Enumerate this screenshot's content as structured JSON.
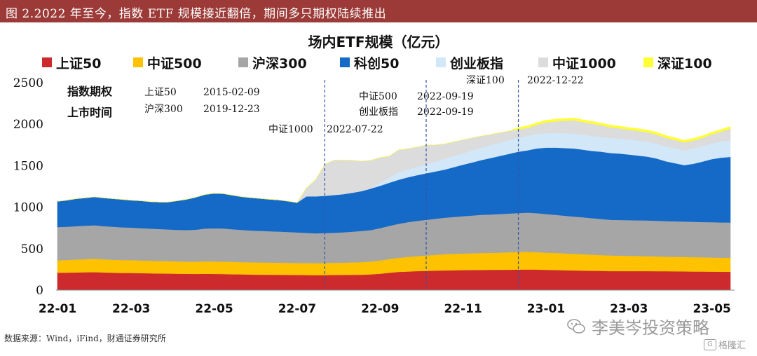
{
  "header": {
    "title": "图 2.2022 年至今，指数 ETF 规模接近翻倍，期间多只期权陆续推出"
  },
  "footer": {
    "source": "数据来源：Wind，iFind，财通证券研究所"
  },
  "watermark": {
    "text": "李美岑投资策略",
    "icon": "wechat-icon",
    "brand": "格隆汇",
    "brand_icon": "g-logo-icon"
  },
  "colors": {
    "sz50": "#cc2a2c",
    "zz500": "#fec200",
    "hs300": "#a6a6a6",
    "kc50": "#1569c7",
    "cybz": "#d2e7f8",
    "zz1000": "#dcdcdc",
    "sz100": "#ffff33",
    "header_bg": "#9b3a37",
    "vline": "#3355aa"
  },
  "chart_data": {
    "type": "area",
    "stacked": true,
    "title": "场内ETF规模（亿元）",
    "xlabel": "",
    "ylabel": "",
    "ylim": [
      0,
      2500
    ],
    "yticks": [
      0,
      500,
      1000,
      1500,
      2000,
      2500
    ],
    "xtick_labels": [
      {
        "label": "22-01",
        "index": 0
      },
      {
        "label": "22-03",
        "index": 8
      },
      {
        "label": "22-05",
        "index": 17
      },
      {
        "label": "22-07",
        "index": 26
      },
      {
        "label": "22-09",
        "index": 35
      },
      {
        "label": "22-11",
        "index": 44
      },
      {
        "label": "23-01",
        "index": 53
      },
      {
        "label": "23-03",
        "index": 62
      },
      {
        "label": "23-05",
        "index": 71
      }
    ],
    "grid": false,
    "legend_position": "top",
    "series": [
      {
        "name": "上证50",
        "color_key": "sz50",
        "values": [
          210,
          212,
          214,
          216,
          218,
          214,
          210,
          208,
          208,
          205,
          203,
          201,
          200,
          198,
          197,
          196,
          198,
          196,
          194,
          192,
          190,
          188,
          187,
          186,
          185,
          184,
          183,
          182,
          181,
          182,
          183,
          184,
          185,
          187,
          190,
          198,
          210,
          220,
          225,
          230,
          233,
          236,
          238,
          240,
          242,
          243,
          244,
          245,
          246,
          247,
          248,
          250,
          248,
          245,
          243,
          240,
          238,
          236,
          234,
          232,
          230,
          230,
          230,
          230,
          230,
          229,
          228,
          227,
          226,
          225,
          224,
          223,
          222,
          221
        ]
      },
      {
        "name": "中证500",
        "color_key": "zz500",
        "values": [
          150,
          152,
          155,
          157,
          160,
          158,
          156,
          155,
          154,
          153,
          152,
          151,
          150,
          149,
          148,
          148,
          149,
          150,
          151,
          150,
          149,
          148,
          148,
          147,
          147,
          146,
          145,
          145,
          145,
          146,
          147,
          148,
          150,
          152,
          155,
          160,
          165,
          170,
          175,
          180,
          185,
          190,
          195,
          198,
          200,
          202,
          204,
          205,
          207,
          209,
          211,
          213,
          210,
          208,
          206,
          203,
          200,
          197,
          194,
          191,
          188,
          186,
          184,
          182,
          180,
          178,
          176,
          175,
          174,
          173,
          172,
          171,
          170,
          170
        ]
      },
      {
        "name": "沪深300",
        "color_key": "hs300",
        "values": [
          400,
          400,
          402,
          404,
          405,
          400,
          398,
          395,
          392,
          390,
          387,
          385,
          382,
          380,
          380,
          385,
          395,
          400,
          398,
          392,
          387,
          383,
          380,
          377,
          375,
          372,
          368,
          364,
          360,
          360,
          362,
          366,
          370,
          375,
          380,
          390,
          400,
          410,
          420,
          425,
          430,
          435,
          440,
          445,
          450,
          455,
          460,
          462,
          465,
          468,
          470,
          472,
          470,
          465,
          460,
          455,
          450,
          445,
          440,
          435,
          430,
          430,
          430,
          430,
          430,
          430,
          429,
          428,
          427,
          426,
          425,
          425,
          425,
          425
        ]
      },
      {
        "name": "科创50",
        "color_key": "kc50",
        "values": [
          310,
          320,
          330,
          335,
          340,
          340,
          338,
          335,
          330,
          330,
          325,
          325,
          330,
          350,
          370,
          390,
          410,
          420,
          420,
          410,
          400,
          395,
          390,
          385,
          380,
          370,
          360,
          440,
          445,
          450,
          455,
          460,
          470,
          480,
          500,
          510,
          520,
          530,
          540,
          550,
          560,
          570,
          580,
          600,
          620,
          640,
          660,
          680,
          700,
          720,
          740,
          750,
          780,
          800,
          810,
          815,
          820,
          815,
          810,
          810,
          805,
          800,
          790,
          780,
          770,
          750,
          720,
          700,
          680,
          700,
          730,
          760,
          780,
          790
        ]
      },
      {
        "name": "创业板指",
        "color_key": "cybz",
        "values": [
          0,
          0,
          0,
          0,
          0,
          0,
          0,
          0,
          0,
          0,
          0,
          0,
          0,
          0,
          0,
          0,
          0,
          0,
          0,
          0,
          0,
          0,
          0,
          0,
          0,
          0,
          0,
          0,
          0,
          0,
          0,
          0,
          0,
          0,
          0,
          40,
          60,
          90,
          95,
          100,
          110,
          120,
          130,
          135,
          140,
          145,
          150,
          155,
          160,
          165,
          170,
          175,
          175,
          175,
          175,
          180,
          180,
          180,
          180,
          180,
          180,
          180,
          180,
          180,
          180,
          180,
          180,
          180,
          180,
          185,
          185,
          190,
          195,
          200
        ]
      },
      {
        "name": "中证1000",
        "color_key": "zz1000",
        "values": [
          0,
          0,
          0,
          0,
          0,
          0,
          0,
          0,
          0,
          0,
          0,
          0,
          0,
          0,
          0,
          0,
          0,
          0,
          0,
          0,
          0,
          0,
          0,
          0,
          0,
          0,
          0,
          100,
          200,
          380,
          420,
          410,
          390,
          360,
          340,
          300,
          260,
          270,
          250,
          240,
          230,
          200,
          180,
          170,
          160,
          150,
          140,
          130,
          120,
          110,
          100,
          95,
          110,
          130,
          140,
          150,
          160,
          155,
          150,
          140,
          130,
          125,
          120,
          118,
          115,
          110,
          105,
          100,
          95,
          95,
          100,
          110,
          120,
          140
        ]
      },
      {
        "name": "深证100",
        "color_key": "sz100",
        "values": [
          0,
          0,
          0,
          0,
          0,
          0,
          0,
          0,
          0,
          0,
          0,
          0,
          0,
          0,
          0,
          0,
          0,
          0,
          0,
          0,
          0,
          0,
          0,
          0,
          0,
          0,
          0,
          0,
          0,
          0,
          0,
          0,
          0,
          0,
          0,
          0,
          0,
          0,
          0,
          0,
          0,
          0,
          0,
          0,
          0,
          0,
          0,
          0,
          0,
          0,
          20,
          25,
          25,
          25,
          25,
          25,
          25,
          25,
          25,
          25,
          25,
          25,
          25,
          25,
          25,
          25,
          25,
          25,
          25,
          25,
          25,
          25,
          25,
          25
        ]
      }
    ],
    "vlines": [
      {
        "index": 29,
        "label": "中证1000",
        "date": "2022-07-22"
      },
      {
        "index": 40,
        "label": "中证500 / 创业板指",
        "date": "2022-09-19"
      },
      {
        "index": 50,
        "label": "深证100",
        "date": "2022-12-22"
      }
    ],
    "annotations": {
      "box_title_1": "指数期权",
      "box_title_2": "上市时间",
      "items": [
        {
          "name": "上证50",
          "date": "2015-02-09"
        },
        {
          "name": "沪深300",
          "date": "2019-12-23"
        },
        {
          "name": "中证1000",
          "date": "2022-07-22"
        },
        {
          "name": "中证500",
          "date": "2022-09-19"
        },
        {
          "name": "创业板指",
          "date": "2022-09-19"
        },
        {
          "name": "深证100",
          "date": "2022-12-22"
        }
      ]
    }
  }
}
